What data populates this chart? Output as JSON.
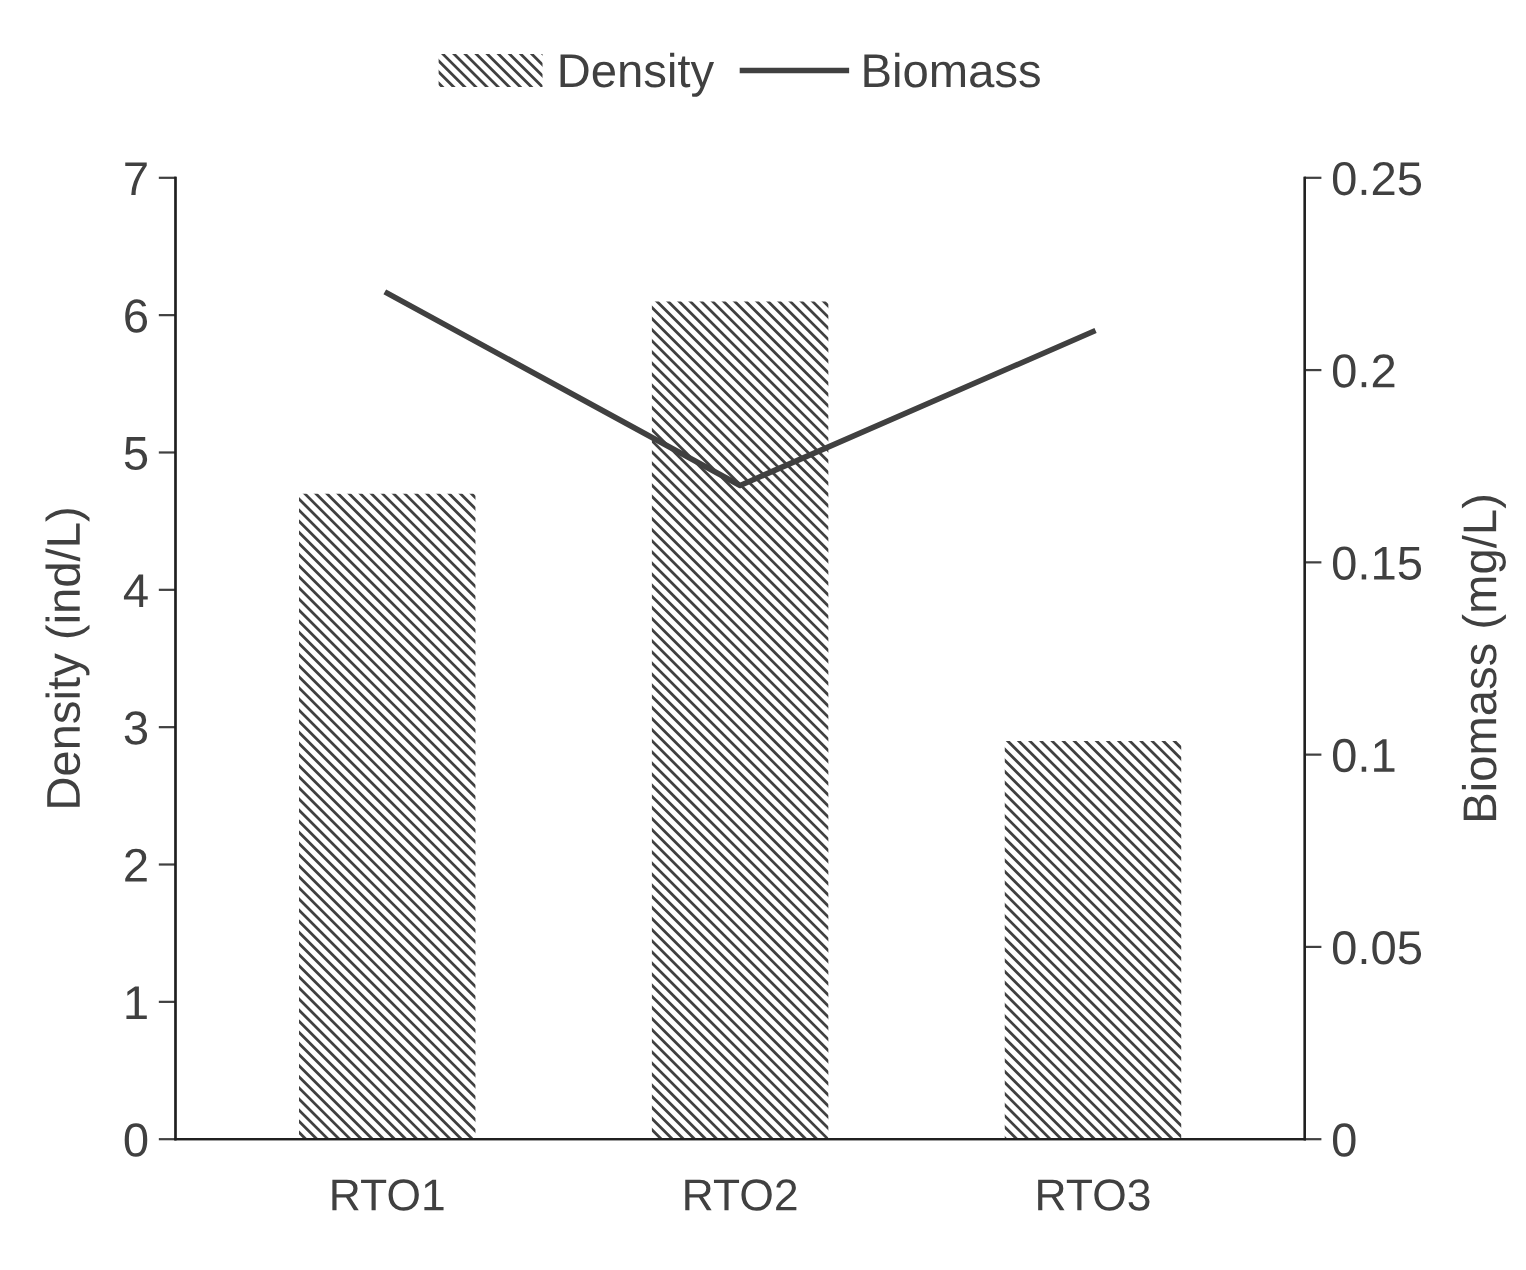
{
  "chart_data": {
    "type": "bar",
    "categories": [
      "RTO1",
      "RTO2",
      "RTO3"
    ],
    "ylabel": "Density (ind/L)",
    "y2label": "Biomass (mg/L)",
    "series": [
      {
        "name": "Density",
        "color": "#404040",
        "values": [
          4.7,
          6.1,
          2.9
        ]
      },
      {
        "name": "Biomass",
        "type": "line",
        "axis": "y2",
        "color": "#404040",
        "values": [
          0.22,
          0.17,
          0.21
        ]
      }
    ],
    "ylim": [
      0,
      7
    ],
    "yticks": [
      0,
      1,
      2,
      3,
      4,
      5,
      6,
      7
    ],
    "y2lim": [
      0,
      0.25
    ],
    "y2ticks": [
      0,
      0.05,
      0.1,
      0.15,
      0.2,
      0.25
    ],
    "legend": "top",
    "grid": false,
    "marker": "none",
    "line_style": "solid"
  }
}
